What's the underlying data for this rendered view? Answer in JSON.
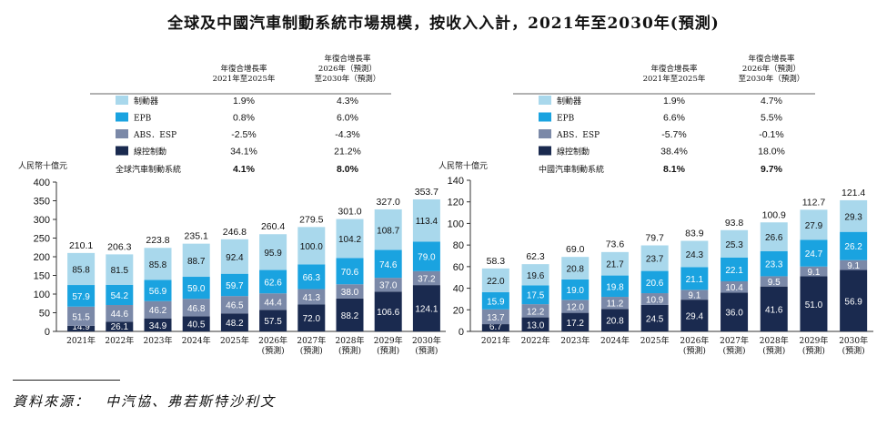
{
  "title": "全球及中國汽車制動系統市場規模，按收入入計，2021年至2030年(預測)",
  "source": "資料來源：　中汽協、弗若斯特沙利文",
  "colors": {
    "brake": "#a9d8ec",
    "epb": "#1aa3e0",
    "abs": "#7b89a8",
    "steer": "#1a2a4f"
  },
  "chart_data": [
    {
      "type": "bar",
      "stacked": true,
      "ylabel": "人民幣十億元",
      "ylim": [
        0,
        400
      ],
      "yticks": [
        "0",
        "50",
        "100",
        "150",
        "200",
        "250",
        "300",
        "350",
        "400"
      ],
      "categories": [
        "2021年",
        "2022年",
        "2023年",
        "2024年",
        "2025年",
        "2026年\n(預測)",
        "2027年\n(預測)",
        "2028年\n(預測)",
        "2029年\n(預測)",
        "2030年\n(預測)"
      ],
      "series": [
        {
          "name": "線控制動",
          "key": "steer",
          "values": [
            14.9,
            26.1,
            34.9,
            40.5,
            48.2,
            57.5,
            72.0,
            88.2,
            106.6,
            124.1
          ],
          "labels": [
            "14.9",
            "26.1",
            "34.9",
            "40.5",
            "48.2",
            "57.5",
            "72.0",
            "88.2",
            "106.6",
            "124.1"
          ]
        },
        {
          "name": "ABS．ESP",
          "key": "abs",
          "values": [
            51.5,
            44.6,
            46.2,
            46.8,
            46.5,
            44.4,
            41.3,
            38.0,
            37.0,
            37.2
          ],
          "labels": [
            "51.5",
            "44.6",
            "46.2",
            "46.8",
            "46.5",
            "44.4",
            "41.3",
            "38.0",
            "37.0",
            "37.2"
          ]
        },
        {
          "name": "EPB",
          "key": "epb",
          "values": [
            57.9,
            54.2,
            56.9,
            59.0,
            59.7,
            62.6,
            66.3,
            70.6,
            74.6,
            79.0
          ],
          "labels": [
            "57.9",
            "54.2",
            "56.9",
            "59.0",
            "59.7",
            "62.6",
            "66.3",
            "70.6",
            "74.6",
            "79.0"
          ]
        },
        {
          "name": "制動器",
          "key": "brake",
          "values": [
            85.8,
            81.5,
            85.8,
            88.7,
            92.4,
            95.9,
            100.0,
            104.2,
            108.7,
            113.4
          ],
          "labels": [
            "85.8",
            "81.5",
            "85.8",
            "88.7",
            "92.4",
            "95.9",
            "100.0",
            "104.2",
            "108.7",
            "113.4"
          ]
        }
      ],
      "totals": [
        "210.1",
        "206.3",
        "223.8",
        "235.1",
        "246.8",
        "260.4",
        "279.5",
        "301.0",
        "327.0",
        "353.7"
      ],
      "totals_values": [
        210.1,
        206.3,
        223.8,
        235.1,
        246.8,
        260.4,
        279.5,
        301.0,
        327.0,
        353.7
      ],
      "cagr_header": [
        "年復合增長率\n2021年至2025年",
        "年復合增長率\n2026年（預測）\n至2030年（預測）"
      ],
      "cagr_rows": [
        {
          "label": "制動器",
          "key": "brake",
          "c1": "1.9%",
          "c2": "4.3%"
        },
        {
          "label": "EPB",
          "key": "epb",
          "c1": "0.8%",
          "c2": "6.0%"
        },
        {
          "label": "ABS．ESP",
          "key": "abs",
          "c1": "-2.5%",
          "c2": "-4.3%"
        },
        {
          "label": "線控制動",
          "key": "steer",
          "c1": "34.1%",
          "c2": "21.2%"
        }
      ],
      "cagr_total": {
        "label": "全球汽車制動系統",
        "c1": "4.1%",
        "c2": "8.0%"
      }
    },
    {
      "type": "bar",
      "stacked": true,
      "ylabel": "人民幣十億元",
      "ylim": [
        0,
        140
      ],
      "yticks": [
        "0",
        "20",
        "40",
        "60",
        "80",
        "100",
        "120",
        "140"
      ],
      "categories": [
        "2021年",
        "2022年",
        "2023年",
        "2024年",
        "2025年",
        "2026年\n(預測)",
        "2027年\n(預測)",
        "2028年\n(預測)",
        "2029年\n(預測)",
        "2030年\n(預測)"
      ],
      "series": [
        {
          "name": "線控制動",
          "key": "steer",
          "values": [
            6.7,
            13.0,
            17.2,
            20.8,
            24.5,
            29.4,
            36.0,
            41.6,
            51.0,
            56.9
          ],
          "labels": [
            "6.7",
            "13.0",
            "17.2",
            "20.8",
            "24.5",
            "29.4",
            "36.0",
            "41.6",
            "51.0",
            "56.9"
          ]
        },
        {
          "name": "ABS．ESP",
          "key": "abs",
          "values": [
            13.7,
            12.2,
            12.0,
            11.2,
            10.9,
            9.1,
            10.4,
            9.5,
            9.1,
            9.1
          ],
          "labels": [
            "13.7",
            "12.2",
            "12.0",
            "11.2",
            "10.9",
            "9.1",
            "10.4",
            "9.5",
            "9.1",
            "9.1"
          ]
        },
        {
          "name": "EPB",
          "key": "epb",
          "values": [
            15.9,
            17.5,
            19.0,
            19.8,
            20.6,
            21.1,
            22.1,
            23.3,
            24.7,
            26.2
          ],
          "labels": [
            "15.9",
            "17.5",
            "19.0",
            "19.8",
            "20.6",
            "21.1",
            "22.1",
            "23.3",
            "24.7",
            "26.2"
          ]
        },
        {
          "name": "制動器",
          "key": "brake",
          "values": [
            22.0,
            19.6,
            20.8,
            21.7,
            23.7,
            24.3,
            25.3,
            26.6,
            27.9,
            29.3
          ],
          "labels": [
            "22.0",
            "19.6",
            "20.8",
            "21.7",
            "23.7",
            "24.3",
            "25.3",
            "26.6",
            "27.9",
            "29.3"
          ]
        }
      ],
      "totals": [
        "58.3",
        "62.3",
        "69.0",
        "73.6",
        "79.7",
        "83.9",
        "93.8",
        "100.9",
        "112.7",
        "121.4"
      ],
      "totals_values": [
        58.3,
        62.3,
        69.0,
        73.6,
        79.7,
        83.9,
        93.8,
        100.9,
        112.7,
        121.4
      ],
      "cagr_header": [
        "年復合增長率\n2021年至2025年",
        "年復合增長率\n2026年（預測）\n至2030年（預測）"
      ],
      "cagr_rows": [
        {
          "label": "制動器",
          "key": "brake",
          "c1": "1.9%",
          "c2": "4.7%"
        },
        {
          "label": "EPB",
          "key": "epb",
          "c1": "6.6%",
          "c2": "5.5%"
        },
        {
          "label": "ABS．ESP",
          "key": "abs",
          "c1": "-5.7%",
          "c2": "-0.1%"
        },
        {
          "label": "線控制動",
          "key": "steer",
          "c1": "38.4%",
          "c2": "18.0%"
        }
      ],
      "cagr_total": {
        "label": "中國汽車制動系統",
        "c1": "8.1%",
        "c2": "9.7%"
      }
    }
  ]
}
